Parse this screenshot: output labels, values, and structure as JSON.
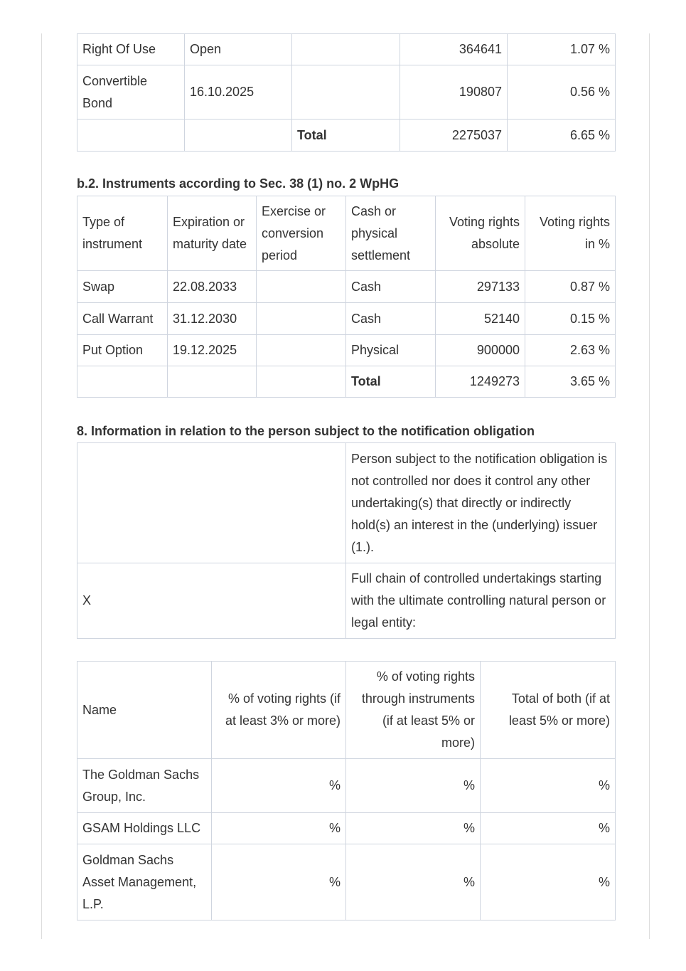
{
  "instruments_table_continued": {
    "rows": [
      {
        "type": "Right Of Use",
        "expiration": "Open",
        "absolute": "364641",
        "percent": "1.07 %"
      },
      {
        "type": "Convertible Bond",
        "expiration": "16.10.2025",
        "absolute": "190807",
        "percent": "0.56 %"
      }
    ],
    "total": {
      "label": "Total",
      "absolute": "2275037",
      "percent": "6.65 %"
    }
  },
  "section_b2": {
    "heading": "b.2. Instruments according to Sec. 38 (1) no. 2 WpHG",
    "header": [
      "Type of instrument",
      "Expiration or maturity date",
      "Exercise or conversion period",
      "Cash or physical settlement",
      "Voting rights absolute",
      "Voting rights in %"
    ],
    "rows": [
      {
        "type": "Swap",
        "expiration": "22.08.2033",
        "settlement": "Cash",
        "absolute": "297133",
        "percent": "0.87 %"
      },
      {
        "type": "Call Warrant",
        "expiration": "31.12.2030",
        "settlement": "Cash",
        "absolute": "52140",
        "percent": "0.15 %"
      },
      {
        "type": "Put Option",
        "expiration": "19.12.2025",
        "settlement": "Physical",
        "absolute": "900000",
        "percent": "2.63 %"
      }
    ],
    "total": {
      "label": "Total",
      "absolute": "1249273",
      "percent": "3.65 %"
    }
  },
  "section_8": {
    "heading": "8. Information in relation to the person subject to the notification obligation",
    "rows": [
      {
        "text": "Person subject to the notification obligation is not controlled nor does it control any other undertaking(s) that directly or indirectly hold(s) an interest in the (underlying) issuer (1.)."
      },
      {
        "mark": "X",
        "text": "Full chain of controlled undertakings starting with the ultimate controlling natural person or legal entity:"
      }
    ]
  },
  "chain_table": {
    "header": [
      "Name",
      "% of voting rights (if at least 3% or more)",
      "% of voting rights through instruments (if at least 5% or more)",
      "Total of both (if at least 5% or more)"
    ],
    "rows": [
      {
        "name": "The Goldman Sachs Group, Inc.",
        "voting_rights": "%",
        "instruments": "%",
        "total": "%"
      },
      {
        "name": "GSAM Holdings LLC",
        "voting_rights": "%",
        "instruments": "%",
        "total": "%"
      },
      {
        "name": "Goldman Sachs Asset Management, L.P.",
        "voting_rights": "%",
        "instruments": "%",
        "total": "%"
      }
    ]
  }
}
